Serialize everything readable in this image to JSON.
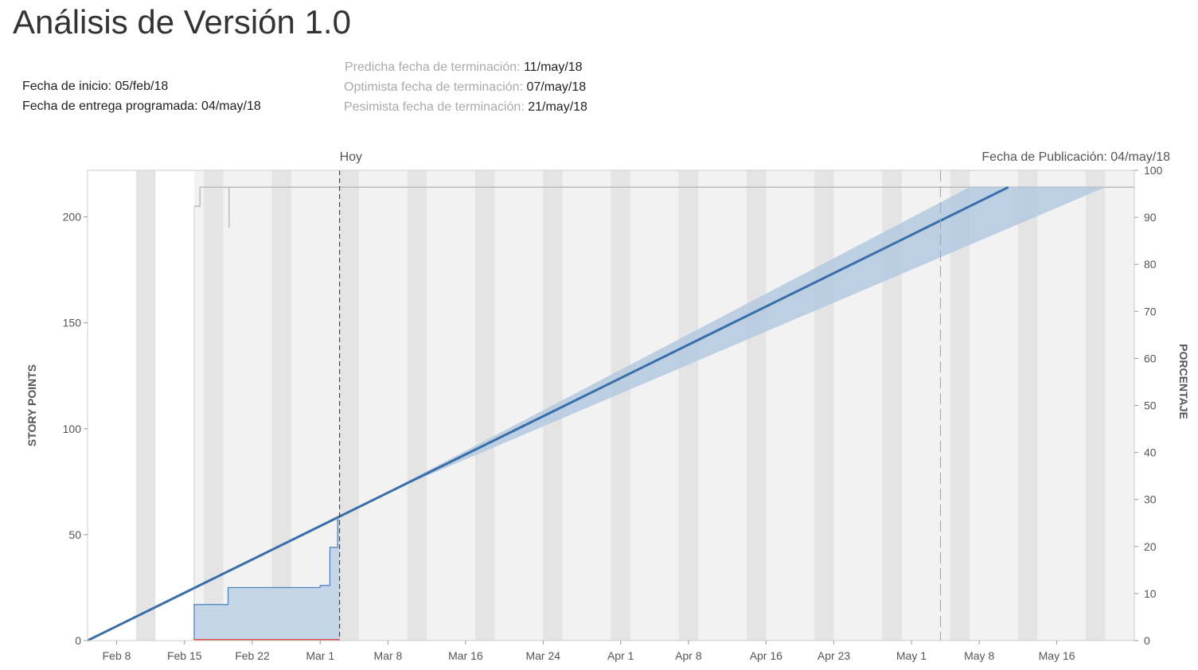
{
  "header": {
    "title": "Análisis de Versión 1.0",
    "start_label": "Fecha de inicio:",
    "start_value": "05/feb/18",
    "scheduled_label": "Fecha de entrega programada:",
    "scheduled_value": "04/may/18",
    "predicted_label": "Predicha fecha de terminación:",
    "predicted_value": "11/may/18",
    "optimistic_label": "Optimista fecha de terminación:",
    "optimistic_value": "07/may/18",
    "pessimistic_label": "Pesimista fecha de terminación:",
    "pessimistic_value": "21/may/18"
  },
  "chart_data": {
    "type": "area",
    "x_type": "date",
    "xlim": [
      "2018-02-05",
      "2018-05-24"
    ],
    "ylim": [
      0,
      222
    ],
    "y2lim": [
      0,
      100
    ],
    "ylabel": "STORY POINTS",
    "y2label": "PORCENTAJE",
    "x_ticks": [
      {
        "date": "2018-02-08",
        "label": "Feb 8"
      },
      {
        "date": "2018-02-15",
        "label": "Feb 15"
      },
      {
        "date": "2018-02-22",
        "label": "Feb 22"
      },
      {
        "date": "2018-03-01",
        "label": "Mar 1"
      },
      {
        "date": "2018-03-08",
        "label": "Mar 8"
      },
      {
        "date": "2018-03-16",
        "label": "Mar 16"
      },
      {
        "date": "2018-03-24",
        "label": "Mar 24"
      },
      {
        "date": "2018-04-01",
        "label": "Apr 1"
      },
      {
        "date": "2018-04-08",
        "label": "Apr 8"
      },
      {
        "date": "2018-04-16",
        "label": "Apr 16"
      },
      {
        "date": "2018-04-23",
        "label": "Apr 23"
      },
      {
        "date": "2018-05-01",
        "label": "May 1"
      },
      {
        "date": "2018-05-08",
        "label": "May 8"
      },
      {
        "date": "2018-05-16",
        "label": "May 16"
      }
    ],
    "y_ticks": [
      0,
      50,
      100,
      150,
      200
    ],
    "y2_ticks": [
      0,
      10,
      20,
      30,
      40,
      50,
      60,
      70,
      80,
      90,
      100
    ],
    "weekend_bands": [
      [
        "2018-02-10",
        "2018-02-12"
      ],
      [
        "2018-02-17",
        "2018-02-19"
      ],
      [
        "2018-02-24",
        "2018-02-26"
      ],
      [
        "2018-03-03",
        "2018-03-05"
      ],
      [
        "2018-03-10",
        "2018-03-12"
      ],
      [
        "2018-03-17",
        "2018-03-19"
      ],
      [
        "2018-03-24",
        "2018-03-26"
      ],
      [
        "2018-03-31",
        "2018-04-02"
      ],
      [
        "2018-04-07",
        "2018-04-09"
      ],
      [
        "2018-04-14",
        "2018-04-16"
      ],
      [
        "2018-04-21",
        "2018-04-23"
      ],
      [
        "2018-04-28",
        "2018-04-30"
      ],
      [
        "2018-05-05",
        "2018-05-07"
      ],
      [
        "2018-05-12",
        "2018-05-14"
      ],
      [
        "2018-05-19",
        "2018-05-21"
      ]
    ],
    "markers": [
      {
        "name": "today",
        "label": "Hoy",
        "date": "2018-03-03"
      },
      {
        "name": "release",
        "label": "Fecha de Publicación: 04/may/18",
        "date": "2018-05-04"
      }
    ],
    "scope": {
      "name": "scope",
      "color": "#bbbbbb",
      "points": [
        [
          "2018-02-16",
          205
        ],
        [
          "2018-02-16.6",
          205
        ],
        [
          "2018-02-16.6",
          214
        ],
        [
          "2018-05-24",
          214
        ]
      ]
    },
    "completed": {
      "name": "completed",
      "color": "#4a7ebb",
      "fill": "#c5d5e8",
      "points": [
        [
          "2018-02-16",
          0
        ],
        [
          "2018-02-16",
          17
        ],
        [
          "2018-02-19.5",
          17
        ],
        [
          "2018-02-19.5",
          25
        ],
        [
          "2018-02-29",
          25
        ],
        [
          "2018-02-29",
          26
        ],
        [
          "2018-03-02",
          26
        ],
        [
          "2018-03-02",
          44
        ],
        [
          "2018-03-02.8",
          44
        ],
        [
          "2018-03-02.8",
          57
        ],
        [
          "2018-03-03",
          57
        ],
        [
          "2018-03-03",
          0
        ]
      ]
    },
    "trend": {
      "name": "trend",
      "color": "#3a6ea8",
      "start": [
        "2018-02-05",
        0
      ],
      "end": [
        "2018-05-11",
        214
      ]
    },
    "forecast_band": {
      "name": "forecast-band",
      "color": "#b4c9e0",
      "origin": [
        "2018-03-07",
        68
      ],
      "optimistic_end": [
        "2018-05-07",
        214
      ],
      "pessimistic_end": [
        "2018-05-21",
        214
      ]
    },
    "bug_line": {
      "name": "bug-line",
      "color": "#d9534f",
      "start": [
        "2018-02-16",
        0
      ],
      "end": [
        "2018-03-03",
        0
      ]
    }
  }
}
